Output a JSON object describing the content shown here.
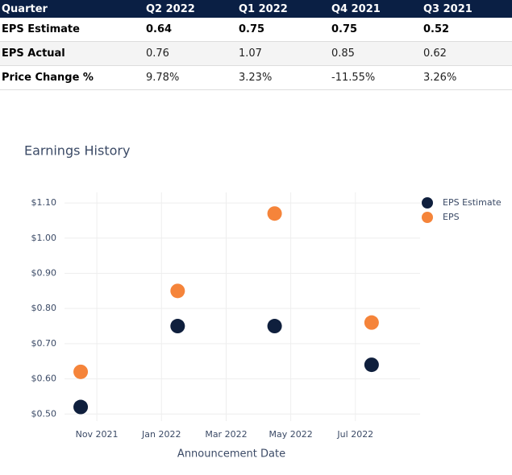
{
  "table": {
    "header": [
      "Quarter",
      "Q2 2022",
      "Q1 2022",
      "Q4 2021",
      "Q3 2021"
    ],
    "rows": [
      [
        "EPS Estimate",
        "0.64",
        "0.75",
        "0.75",
        "0.52"
      ],
      [
        "EPS Actual",
        "0.76",
        "1.07",
        "0.85",
        "0.62"
      ],
      [
        "Price Change %",
        "9.78%",
        "3.23%",
        "-11.55%",
        "3.26%"
      ]
    ]
  },
  "chart_data": {
    "type": "scatter",
    "title": "Earnings History",
    "x_label": "Announcement Date",
    "x": [
      "2021-10",
      "2022-01",
      "2022-04",
      "2022-07"
    ],
    "series": [
      {
        "name": "EPS Estimate",
        "color": "#0f1f3d",
        "values": [
          0.52,
          0.75,
          0.75,
          0.64
        ]
      },
      {
        "name": "EPS",
        "color": "#f5843a",
        "values": [
          0.62,
          0.85,
          1.07,
          0.76
        ]
      }
    ],
    "xlim": [
      "2021-10",
      "2022-09"
    ],
    "xticks": [
      {
        "value": "2021-11",
        "label": "Nov 2021"
      },
      {
        "value": "2022-01",
        "label": "Jan 2022"
      },
      {
        "value": "2022-03",
        "label": "Mar 2022"
      },
      {
        "value": "2022-05",
        "label": "May 2022"
      },
      {
        "value": "2022-07",
        "label": "Jul 2022"
      }
    ],
    "ylim": [
      0.48,
      1.13
    ],
    "yticks": [
      {
        "value": 0.5,
        "label": "$0.50"
      },
      {
        "value": 0.6,
        "label": "$0.60"
      },
      {
        "value": 0.7,
        "label": "$0.70"
      },
      {
        "value": 0.8,
        "label": "$0.80"
      },
      {
        "value": 0.9,
        "label": "$0.90"
      },
      {
        "value": 1.0,
        "label": "$1.00"
      },
      {
        "value": 1.1,
        "label": "$1.10"
      }
    ],
    "grid": true,
    "legend": "top-right"
  }
}
